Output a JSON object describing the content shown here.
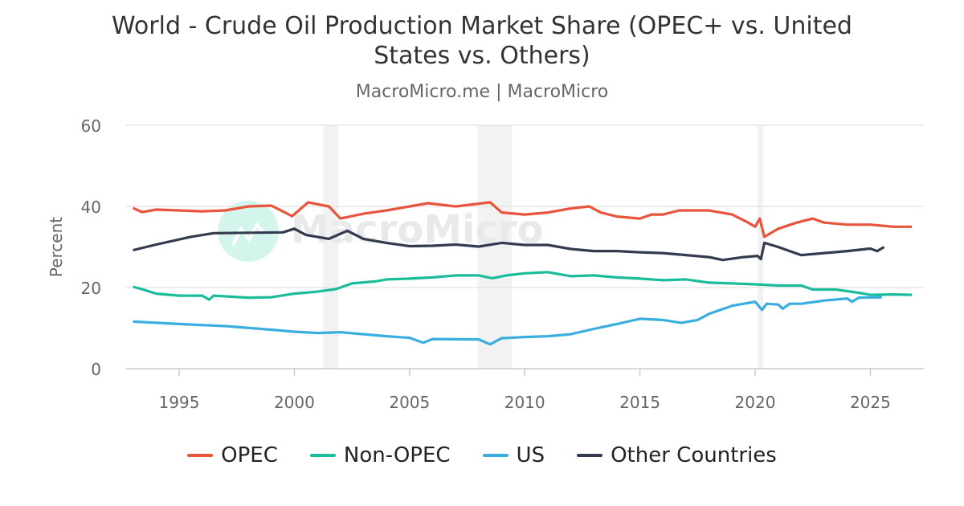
{
  "chart_data": {
    "type": "line",
    "title_lines": [
      "World - Crude Oil Production Market Share (OPEC+ vs. United",
      "States vs. Others)"
    ],
    "subtitle": "MacroMicro.me | MacroMicro",
    "watermark": "MacroMicro",
    "ylabel": "Percent",
    "xlabel": "",
    "ylim": [
      0,
      60
    ],
    "yticks": [
      0,
      20,
      40,
      60
    ],
    "xlim": [
      1992.7,
      2027.2
    ],
    "xticks": [
      1995,
      2000,
      2005,
      2010,
      2015,
      2020,
      2025
    ],
    "grid": "horizontal",
    "legend_position": "bottom",
    "shaded_periods": [
      [
        2001.25,
        2001.9
      ],
      [
        2007.95,
        2009.45
      ],
      [
        2020.1,
        2020.35
      ]
    ],
    "series": [
      {
        "name": "OPEC",
        "color": "#e8543c",
        "x": [
          1993,
          1993.4,
          1994,
          1995,
          1996,
          1997,
          1998,
          1999,
          1999.9,
          2000.6,
          2001.5,
          2002,
          2003,
          2004,
          2005,
          2005.8,
          2007,
          2008.5,
          2009,
          2010,
          2011,
          2012,
          2012.8,
          2013.3,
          2014,
          2015,
          2015.5,
          2016,
          2016.7,
          2017.5,
          2018,
          2019,
          2019.7,
          2020,
          2020.2,
          2020.4,
          2021,
          2021.8,
          2022.5,
          2023,
          2024,
          2025,
          2026,
          2026.8
        ],
        "y": [
          39.6,
          38.6,
          39.2,
          39,
          38.8,
          39,
          40,
          40.2,
          37.6,
          41,
          40,
          37,
          38.2,
          39,
          40,
          40.8,
          40,
          41,
          38.5,
          38,
          38.5,
          39.5,
          40,
          38.5,
          37.5,
          37,
          38,
          38,
          39,
          39,
          39,
          38,
          36,
          35,
          37,
          32.5,
          34.5,
          36,
          37,
          36,
          35.5,
          35.5,
          35,
          35
        ]
      },
      {
        "name": "Non-OPEC",
        "color": "#1abc9c",
        "x": [
          1993,
          1993.5,
          1994,
          1995,
          1996,
          1996.3,
          1996.5,
          1998,
          1999,
          2000,
          2001,
          2001.8,
          2002.5,
          2003.5,
          2004,
          2005,
          2006,
          2007,
          2008,
          2008.6,
          2009.2,
          2010,
          2011,
          2012,
          2013,
          2014,
          2015,
          2016,
          2017,
          2018,
          2019,
          2020,
          2021,
          2022,
          2022.5,
          2023.5,
          2024.5,
          2025,
          2026,
          2026.8
        ],
        "y": [
          20.2,
          19.4,
          18.5,
          18,
          18,
          17,
          18,
          17.5,
          17.6,
          18.5,
          19,
          19.6,
          21,
          21.5,
          22,
          22.2,
          22.5,
          23,
          23,
          22.3,
          23,
          23.5,
          23.8,
          22.8,
          23,
          22.5,
          22.2,
          21.8,
          22,
          21.2,
          21,
          20.8,
          20.5,
          20.5,
          19.5,
          19.5,
          18.7,
          18.2,
          18.3,
          18.2
        ]
      },
      {
        "name": "US",
        "color": "#3aaede",
        "x": [
          1993,
          1995,
          1997,
          1999,
          2000,
          2001,
          2002,
          2003,
          2004,
          2005,
          2005.6,
          2006,
          2008,
          2008.5,
          2009,
          2010,
          2011,
          2012,
          2013,
          2014,
          2015,
          2016,
          2016.8,
          2017.5,
          2018,
          2019,
          2020,
          2020.3,
          2020.5,
          2021,
          2021.2,
          2021.5,
          2022,
          2023,
          2024,
          2024.2,
          2024.5,
          2025.5
        ],
        "y": [
          11.6,
          11,
          10.5,
          9.6,
          9.1,
          8.8,
          9,
          8.5,
          8,
          7.6,
          6.4,
          7.3,
          7.2,
          6,
          7.5,
          7.8,
          8,
          8.5,
          9.8,
          11,
          12.3,
          12,
          11.3,
          12,
          13.5,
          15.5,
          16.5,
          14.5,
          16,
          15.8,
          14.8,
          16,
          16,
          16.8,
          17.3,
          16.5,
          17.5,
          17.6
        ]
      },
      {
        "name": "Other Countries",
        "color": "#343a4f",
        "x": [
          1993,
          1994,
          1995.5,
          1996.5,
          1998,
          1999.5,
          2000,
          2000.5,
          2001.5,
          2002.3,
          2003,
          2004,
          2005,
          2006,
          2007,
          2008,
          2009,
          2010,
          2011,
          2012,
          2013,
          2014,
          2015,
          2016,
          2017,
          2018,
          2018.6,
          2019.5,
          2020.1,
          2020.25,
          2020.4,
          2021,
          2021.5,
          2022,
          2023,
          2024,
          2025,
          2025.3,
          2025.6
        ],
        "y": [
          29.2,
          30.6,
          32.5,
          33.4,
          33.5,
          33.6,
          34.5,
          33,
          32,
          34,
          32,
          31,
          30.2,
          30.3,
          30.6,
          30.1,
          31,
          30.5,
          30.5,
          29.5,
          29,
          29,
          28.7,
          28.5,
          28,
          27.5,
          26.8,
          27.5,
          27.8,
          27,
          31,
          30,
          29,
          28,
          28.5,
          29,
          29.6,
          29,
          30
        ]
      }
    ]
  }
}
